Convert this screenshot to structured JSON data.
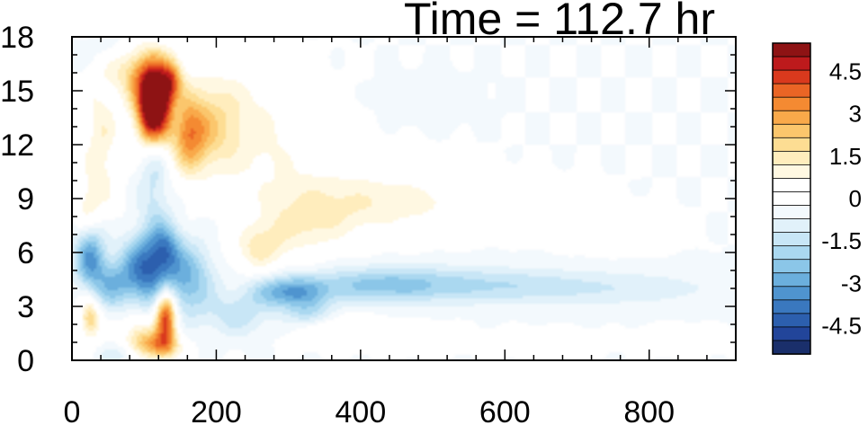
{
  "chart_data": {
    "type": "heatmap",
    "title": "Time = 112.7 hr",
    "xlim": [
      0,
      920
    ],
    "ylim": [
      0,
      18
    ],
    "x_ticks": [
      0,
      200,
      400,
      600,
      800
    ],
    "x_tick_labels": [
      "0",
      "200",
      "400",
      "600",
      "800"
    ],
    "y_ticks": [
      0,
      3,
      6,
      9,
      12,
      15,
      18
    ],
    "y_tick_labels": [
      "0",
      "3",
      "6",
      "9",
      "12",
      "15",
      "18"
    ],
    "colorbar": {
      "levels": [
        -5.5,
        -5,
        -4.5,
        -4,
        -3.5,
        -3,
        -2.5,
        -2,
        -1.5,
        -1,
        -0.5,
        0,
        0.5,
        1,
        1.5,
        2,
        2.5,
        3,
        3.5,
        4,
        4.5,
        5,
        5.5
      ],
      "colors": [
        "#1a2f6b",
        "#22459a",
        "#2c5fae",
        "#3a78bf",
        "#4f94cf",
        "#6bafdd",
        "#8bc6e8",
        "#aad8f0",
        "#c8e6f6",
        "#e1f1fa",
        "#f3f9fd",
        "#ffffff",
        "#ffffff",
        "#fff8e2",
        "#ffedbd",
        "#fddd93",
        "#fbc66c",
        "#f9a94a",
        "#f48a32",
        "#ea6525",
        "#d9391d",
        "#bd1a1c",
        "#8e1314"
      ],
      "labels": [
        "4.5",
        "3",
        "1.5",
        "0",
        "-1.5",
        "-3",
        "-4.5"
      ],
      "label_values": [
        4.5,
        3,
        1.5,
        0,
        -1.5,
        -3,
        -4.5
      ]
    },
    "features": [
      {
        "x": 115,
        "y": 14.8,
        "sx": 18,
        "sy": 1.4,
        "v": 7.0
      },
      {
        "x": 110,
        "y": 13.2,
        "sx": 14,
        "sy": 1.0,
        "v": 3.0
      },
      {
        "x": 85,
        "y": 16.0,
        "sx": 22,
        "sy": 1.0,
        "v": 1.8
      },
      {
        "x": 140,
        "y": 15.6,
        "sx": 10,
        "sy": 0.8,
        "v": 2.5
      },
      {
        "x": 160,
        "y": 12.5,
        "sx": 18,
        "sy": 1.4,
        "v": 2.6
      },
      {
        "x": 185,
        "y": 13.0,
        "sx": 30,
        "sy": 1.8,
        "v": 1.6
      },
      {
        "x": 230,
        "y": 13.5,
        "sx": 50,
        "sy": 2.5,
        "v": 0.9
      },
      {
        "x": 300,
        "y": 11.5,
        "sx": 60,
        "sy": 2.5,
        "v": 0.6
      },
      {
        "x": 400,
        "y": 8.8,
        "sx": 80,
        "sy": 1.4,
        "v": 1.0
      },
      {
        "x": 500,
        "y": 8.8,
        "sx": 90,
        "sy": 1.0,
        "v": 0.6
      },
      {
        "x": 320,
        "y": 7.5,
        "sx": 45,
        "sy": 1.2,
        "v": 1.1
      },
      {
        "x": 260,
        "y": 6.2,
        "sx": 25,
        "sy": 0.9,
        "v": 1.5
      },
      {
        "x": 740,
        "y": 7.2,
        "sx": 45,
        "sy": 0.7,
        "v": 0.8
      },
      {
        "x": 40,
        "y": 12.0,
        "sx": 18,
        "sy": 3.0,
        "v": 1.4
      },
      {
        "x": 20,
        "y": 8.5,
        "sx": 12,
        "sy": 1.0,
        "v": 1.2
      },
      {
        "x": 25,
        "y": 2.3,
        "sx": 10,
        "sy": 0.8,
        "v": 2.6
      },
      {
        "x": 130,
        "y": 2.5,
        "sx": 10,
        "sy": 1.0,
        "v": 5.0
      },
      {
        "x": 120,
        "y": 0.8,
        "sx": 20,
        "sy": 0.6,
        "v": 3.5
      },
      {
        "x": 90,
        "y": 1.5,
        "sx": 15,
        "sy": 1.0,
        "v": 1.5
      },
      {
        "x": 360,
        "y": 1.8,
        "sx": 40,
        "sy": 0.6,
        "v": 1.2
      },
      {
        "x": 470,
        "y": 1.3,
        "sx": 40,
        "sy": 0.5,
        "v": 0.9
      },
      {
        "x": 650,
        "y": 1.0,
        "sx": 40,
        "sy": 0.4,
        "v": 0.7
      },
      {
        "x": 840,
        "y": 1.2,
        "sx": 30,
        "sy": 0.4,
        "v": 0.6
      },
      {
        "x": 115,
        "y": 10.0,
        "sx": 15,
        "sy": 2.5,
        "v": -1.2
      },
      {
        "x": 145,
        "y": 14.0,
        "sx": 8,
        "sy": 1.5,
        "v": -0.8
      },
      {
        "x": 25,
        "y": 5.8,
        "sx": 15,
        "sy": 1.3,
        "v": -3.0
      },
      {
        "x": 55,
        "y": 4.3,
        "sx": 18,
        "sy": 1.0,
        "v": -2.0
      },
      {
        "x": 100,
        "y": 5.0,
        "sx": 22,
        "sy": 1.4,
        "v": -3.6
      },
      {
        "x": 160,
        "y": 4.5,
        "sx": 25,
        "sy": 1.4,
        "v": -2.5
      },
      {
        "x": 130,
        "y": 6.2,
        "sx": 15,
        "sy": 1.0,
        "v": -2.3
      },
      {
        "x": 300,
        "y": 3.8,
        "sx": 35,
        "sy": 0.6,
        "v": -2.8
      },
      {
        "x": 420,
        "y": 4.2,
        "sx": 70,
        "sy": 0.7,
        "v": -1.8
      },
      {
        "x": 560,
        "y": 4.2,
        "sx": 100,
        "sy": 0.7,
        "v": -1.2
      },
      {
        "x": 750,
        "y": 4.0,
        "sx": 120,
        "sy": 0.7,
        "v": -0.8
      },
      {
        "x": 330,
        "y": 2.5,
        "sx": 25,
        "sy": 0.6,
        "v": -1.6
      },
      {
        "x": 230,
        "y": 2.5,
        "sx": 30,
        "sy": 0.8,
        "v": -1.3
      },
      {
        "x": 80,
        "y": 0.3,
        "sx": 30,
        "sy": 0.4,
        "v": -0.9
      },
      {
        "x": 40,
        "y": 17.5,
        "sx": 20,
        "sy": 0.6,
        "v": -0.6
      },
      {
        "x": 490,
        "y": 14.5,
        "sx": 40,
        "sy": 0.8,
        "v": -0.4
      }
    ]
  }
}
